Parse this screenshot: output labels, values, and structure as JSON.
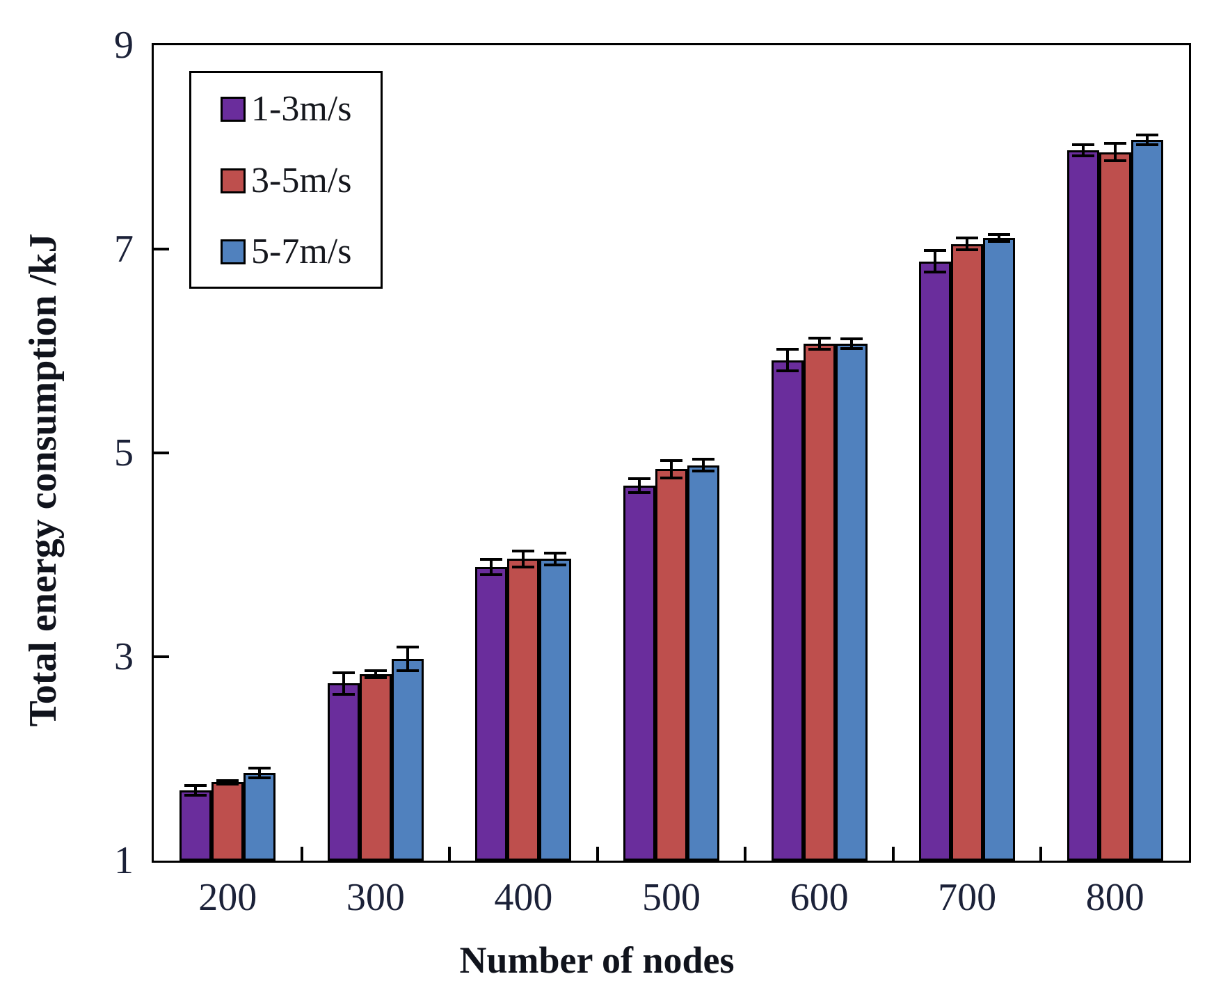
{
  "figure": {
    "background": "#ffffff",
    "axis_color": "#000000",
    "tick_label_color": "#1b2138",
    "title_color": "#10131c"
  },
  "chart_data": {
    "type": "bar",
    "title": "",
    "xlabel": "Number of nodes",
    "ylabel": "Total energy consumption /kJ",
    "categories": [
      "200",
      "300",
      "400",
      "500",
      "600",
      "700",
      "800"
    ],
    "series": [
      {
        "name": "1-3m/s",
        "color": "#6A2D9C",
        "values": [
          1.69,
          2.74,
          3.88,
          4.68,
          5.91,
          6.88,
          7.97
        ],
        "errors": [
          0.06,
          0.12,
          0.09,
          0.08,
          0.12,
          0.12,
          0.07
        ]
      },
      {
        "name": "3-5m/s",
        "color": "#BE4F4D",
        "values": [
          1.77,
          2.83,
          3.96,
          4.84,
          6.07,
          7.05,
          7.95
        ],
        "errors": [
          0.03,
          0.05,
          0.09,
          0.1,
          0.07,
          0.07,
          0.1
        ]
      },
      {
        "name": "5-7m/s",
        "color": "#5081BE",
        "values": [
          1.86,
          2.98,
          3.96,
          4.88,
          6.07,
          7.11,
          8.07
        ],
        "errors": [
          0.06,
          0.13,
          0.07,
          0.07,
          0.06,
          0.05,
          0.06
        ]
      }
    ],
    "y_ticks": [
      9,
      7,
      5,
      3,
      1
    ],
    "ylim": [
      1,
      9
    ],
    "grid": false,
    "error_bars": true,
    "legend_position": "upper-left"
  }
}
